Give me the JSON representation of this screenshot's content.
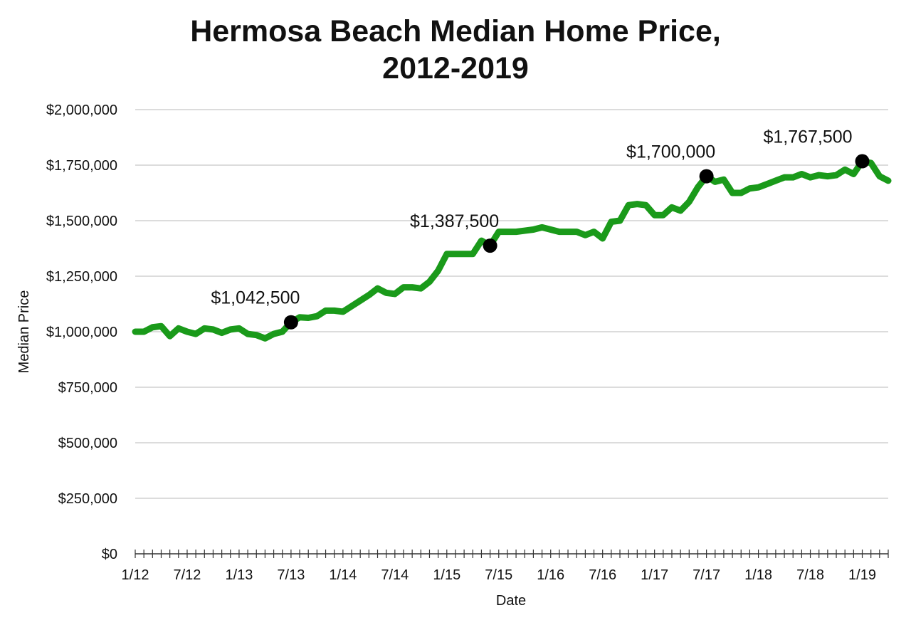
{
  "chart_data": {
    "type": "line",
    "title_lines": [
      "Hermosa Beach Median Home Price,",
      "2012-2019"
    ],
    "xlabel": "Date",
    "ylabel": "Median Price",
    "ylim": [
      0,
      2000000
    ],
    "yticks": [
      0,
      250000,
      500000,
      750000,
      1000000,
      1250000,
      1500000,
      1750000,
      2000000
    ],
    "ytick_labels": [
      "$0",
      "$250,000",
      "$500,000",
      "$750,000",
      "$1,000,000",
      "$1,250,000",
      "$1,500,000",
      "$1,750,000",
      "$2,000,000"
    ],
    "x_start": "2012-01",
    "x_labels": [
      {
        "month_index": 0,
        "label": "1/12"
      },
      {
        "month_index": 6,
        "label": "7/12"
      },
      {
        "month_index": 12,
        "label": "1/13"
      },
      {
        "month_index": 18,
        "label": "7/13"
      },
      {
        "month_index": 24,
        "label": "1/14"
      },
      {
        "month_index": 30,
        "label": "7/14"
      },
      {
        "month_index": 36,
        "label": "1/15"
      },
      {
        "month_index": 42,
        "label": "7/15"
      },
      {
        "month_index": 48,
        "label": "1/16"
      },
      {
        "month_index": 54,
        "label": "7/16"
      },
      {
        "month_index": 60,
        "label": "1/17"
      },
      {
        "month_index": 66,
        "label": "7/17"
      },
      {
        "month_index": 72,
        "label": "1/18"
      },
      {
        "month_index": 78,
        "label": "7/18"
      },
      {
        "month_index": 84,
        "label": "1/19"
      }
    ],
    "grid": true,
    "line_color": "#1a9a1a",
    "marker_color": "#000000",
    "series": [
      {
        "values": [
          1000000,
          1000000,
          1020000,
          1025000,
          980000,
          1015000,
          1000000,
          990000,
          1015000,
          1010000,
          995000,
          1010000,
          1015000,
          990000,
          985000,
          970000,
          990000,
          1000000,
          1042500,
          1065000,
          1062500,
          1070000,
          1095000,
          1095000,
          1090000,
          1115000,
          1140000,
          1165000,
          1195000,
          1175000,
          1170000,
          1200000,
          1200000,
          1195000,
          1225000,
          1275000,
          1350000,
          1350000,
          1350000,
          1350000,
          1410000,
          1387500,
          1450000,
          1450000,
          1450000,
          1455000,
          1460000,
          1470000,
          1460000,
          1450000,
          1450000,
          1450000,
          1435000,
          1450000,
          1420000,
          1495000,
          1500000,
          1570000,
          1575000,
          1570000,
          1525000,
          1525000,
          1560000,
          1545000,
          1585000,
          1650000,
          1700000,
          1675000,
          1685000,
          1625000,
          1625000,
          1645000,
          1650000,
          1665000,
          1680000,
          1695000,
          1695000,
          1710000,
          1695000,
          1705000,
          1700000,
          1705000,
          1730000,
          1710000,
          1767500,
          1760000,
          1700000,
          1680000
        ]
      }
    ],
    "annotations": [
      {
        "month_index": 18,
        "value": 1042500,
        "label": "$1,042,500"
      },
      {
        "month_index": 41,
        "value": 1387500,
        "label": "$1,387,500"
      },
      {
        "month_index": 66,
        "value": 1700000,
        "label": "$1,700,000"
      },
      {
        "month_index": 84,
        "value": 1767500,
        "label": "$1,767,500"
      }
    ]
  }
}
